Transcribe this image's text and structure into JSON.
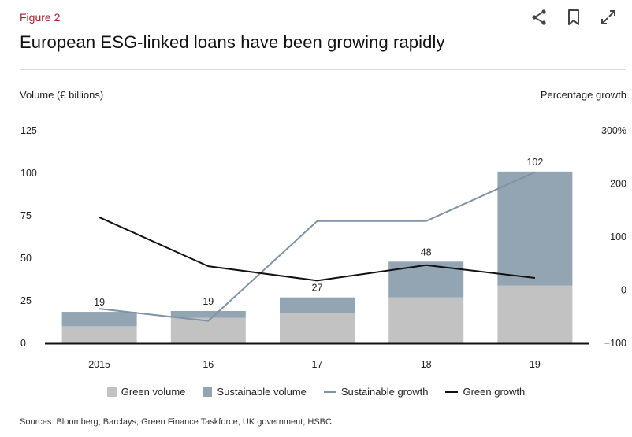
{
  "figure_label": "Figure 2",
  "title": "European ESG-linked loans have been growing rapidly",
  "toolbar": {
    "share_icon": "share-icon",
    "bookmark_icon": "bookmark-icon",
    "expand_icon": "expand-icon"
  },
  "source": "Sources: Bloomberg; Barclays, Green Finance Taskforce, UK government; HSBC",
  "legend": {
    "green_volume": "Green volume",
    "sustainable_volume": "Sustainable volume",
    "sustainable_growth": "Sustainable  growth",
    "green_growth": "Green growth"
  },
  "colors": {
    "green_volume": "#c2c2c2",
    "sustainable_volume": "#93a4b3",
    "sustainable_growth": "#7f93a6",
    "green_growth": "#111111",
    "accent": "#a0292b"
  },
  "chart_data": {
    "type": "bar",
    "title": "European ESG-linked loans have been growing rapidly",
    "categories": [
      "2015",
      "16",
      "17",
      "18",
      "19"
    ],
    "ylabel": "Volume (€ billions)",
    "y2label": "Percentage growth",
    "ylim": [
      0,
      125
    ],
    "y2lim": [
      -100,
      300
    ],
    "yticks": [
      "0",
      "25",
      "50",
      "75",
      "100",
      "125"
    ],
    "y2ticks": [
      "−100",
      "0",
      "100",
      "200",
      "300%"
    ],
    "grid": false,
    "legend_position": "bottom",
    "series": [
      {
        "name": "Green volume",
        "type": "bar",
        "axis": "left",
        "values": [
          10,
          15,
          18,
          27,
          34
        ]
      },
      {
        "name": "Sustainable volume",
        "type": "bar",
        "axis": "left",
        "values": [
          8.5,
          4,
          9,
          21,
          67
        ]
      },
      {
        "name": "Sustainable  growth",
        "type": "line",
        "axis": "right",
        "values": [
          -35,
          -58,
          130,
          130,
          222
        ]
      },
      {
        "name": "Green growth",
        "type": "line",
        "axis": "right",
        "values": [
          137,
          45,
          18,
          47,
          23
        ]
      }
    ],
    "totals": [
      19,
      19,
      27,
      48,
      102
    ]
  }
}
